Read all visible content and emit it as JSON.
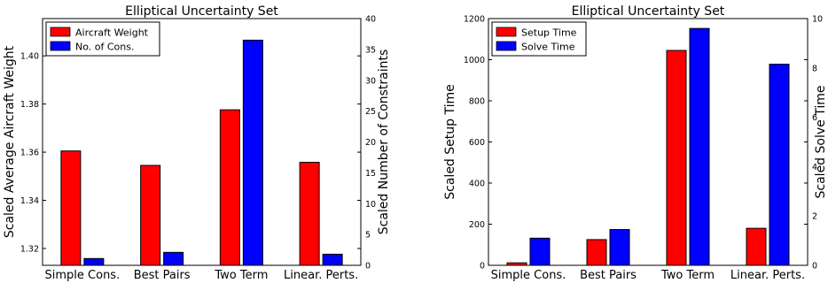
{
  "chart_data": [
    {
      "type": "bar",
      "title": "Elliptical Uncertainty Set",
      "categories": [
        "Simple Cons.",
        "Best Pairs",
        "Two Term",
        "Linear. Perts."
      ],
      "ylabel": "Scaled Average Aircraft Weight",
      "ylabel_right": "Scaled Number of Constraints",
      "ylim": [
        1.313,
        1.4155
      ],
      "ylim_right": [
        0,
        40
      ],
      "yticks": [
        "1.32",
        "1.34",
        "1.36",
        "1.38",
        "1.40"
      ],
      "yticks_right": [
        "0",
        "5",
        "10",
        "15",
        "20",
        "25",
        "30",
        "35",
        "40"
      ],
      "legend_position": "upper-left",
      "series": [
        {
          "name": "Aircraft Weight",
          "color": "#ff0000",
          "axis": "left",
          "values": [
            1.3605,
            1.3545,
            1.3776,
            1.3558
          ]
        },
        {
          "name": "No. of Cons.",
          "color": "#0000ff",
          "axis": "right",
          "values": [
            1.1,
            2.1,
            36.5,
            1.8
          ]
        }
      ]
    },
    {
      "type": "bar",
      "title": "Elliptical Uncertainty Set",
      "categories": [
        "Simple Cons.",
        "Best Pairs",
        "Two Term",
        "Linear. Perts."
      ],
      "ylabel": "Scaled Setup Time",
      "ylabel_right": "Scaled Solve Time",
      "ylim": [
        0,
        1200
      ],
      "ylim_right": [
        0,
        10
      ],
      "yticks": [
        "0",
        "200",
        "400",
        "600",
        "800",
        "1000",
        "1200"
      ],
      "yticks_right": [
        "0",
        "2",
        "4",
        "6",
        "8",
        "10"
      ],
      "legend_position": "upper-left",
      "series": [
        {
          "name": "Setup Time",
          "color": "#ff0000",
          "axis": "left",
          "values": [
            12,
            125,
            1045,
            180
          ]
        },
        {
          "name": "Solve Time",
          "color": "#0000ff",
          "axis": "right",
          "values": [
            1.1,
            1.45,
            9.6,
            8.15
          ]
        }
      ]
    }
  ]
}
